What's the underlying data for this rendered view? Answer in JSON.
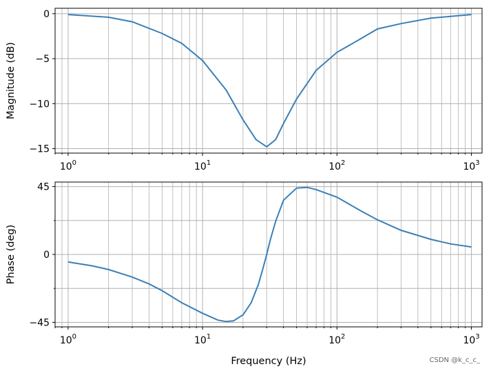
{
  "chart_data": [
    {
      "type": "line",
      "xscale": "log",
      "xlim": [
        0.8,
        1200
      ],
      "ylim": [
        -15.5,
        0.6
      ],
      "grid": "both",
      "xlabel": "",
      "ylabel": "Magnitude (dB)",
      "yticks": [
        0,
        -5,
        -10,
        -15
      ],
      "ytick_labels": [
        "0",
        "−5",
        "−10",
        "−15"
      ],
      "xticks": [
        {
          "value": 1,
          "base": "10",
          "exp": "0"
        },
        {
          "value": 10,
          "base": "10",
          "exp": "1"
        },
        {
          "value": 100,
          "base": "10",
          "exp": "2"
        },
        {
          "value": 1000,
          "base": "10",
          "exp": "3"
        }
      ],
      "series": [
        {
          "color": "#3a7fb6",
          "x": [
            1,
            2,
            3,
            5,
            7,
            10,
            15,
            20,
            25,
            30,
            35,
            40,
            50,
            70,
            100,
            150,
            200,
            300,
            500,
            700,
            1000
          ],
          "y": [
            -0.1,
            -0.4,
            -0.9,
            -2.2,
            -3.3,
            -5.2,
            -8.5,
            -11.8,
            -14.0,
            -14.8,
            -14.0,
            -12.2,
            -9.5,
            -6.3,
            -4.3,
            -2.8,
            -1.7,
            -1.1,
            -0.5,
            -0.3,
            -0.1
          ]
        }
      ]
    },
    {
      "type": "line",
      "xscale": "log",
      "xlim": [
        0.8,
        1200
      ],
      "ylim": [
        -48,
        48
      ],
      "grid": "both",
      "xlabel": "Frequency (Hz)",
      "ylabel": "Phase (deg)",
      "yticks": [
        45,
        0,
        -45
      ],
      "ytick_labels": [
        "45",
        "0",
        "−45"
      ],
      "yminor": [
        22.5,
        -22.5
      ],
      "xticks": [
        {
          "value": 1,
          "base": "10",
          "exp": "0"
        },
        {
          "value": 10,
          "base": "10",
          "exp": "1"
        },
        {
          "value": 100,
          "base": "10",
          "exp": "2"
        },
        {
          "value": 1000,
          "base": "10",
          "exp": "3"
        }
      ],
      "series": [
        {
          "color": "#3a7fb6",
          "x": [
            1,
            1.5,
            2,
            3,
            4,
            5,
            7,
            10,
            13,
            15,
            17,
            20,
            23,
            26,
            28,
            30,
            32,
            35,
            40,
            50,
            60,
            70,
            100,
            150,
            200,
            300,
            500,
            700,
            1000
          ],
          "y": [
            -5,
            -7.5,
            -10,
            -15,
            -19.5,
            -24,
            -32,
            -39,
            -43.5,
            -44.5,
            -44,
            -40,
            -32,
            -20,
            -10,
            0,
            10,
            22,
            36,
            44,
            44.5,
            43,
            38,
            29,
            23,
            16,
            10,
            7,
            5
          ]
        }
      ]
    }
  ],
  "watermark": "CSDN @k_c_c_"
}
